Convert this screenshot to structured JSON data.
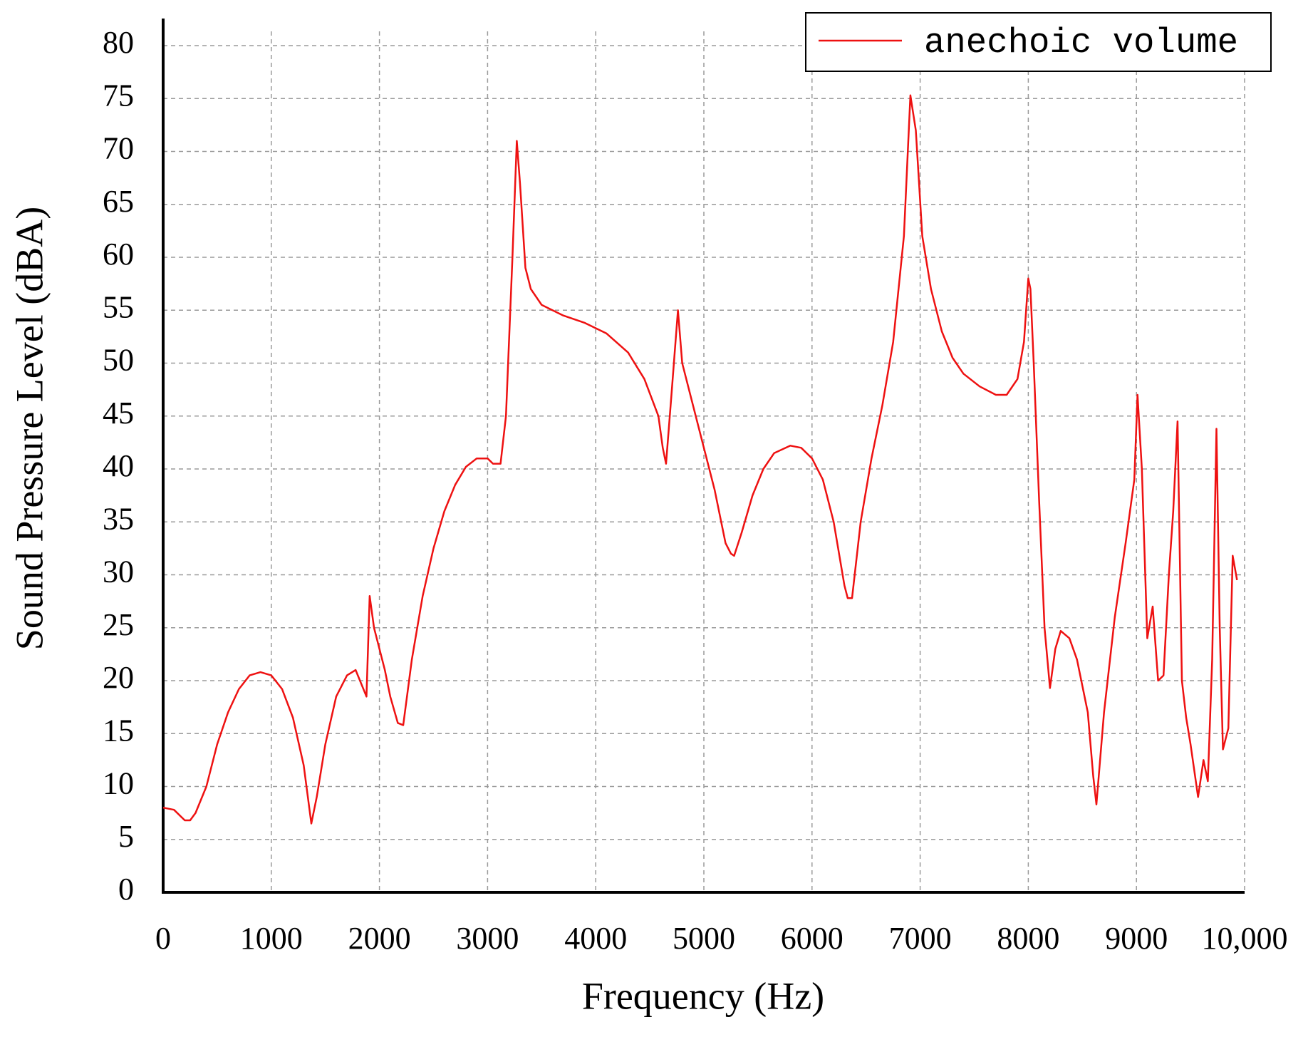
{
  "chart_data": {
    "type": "line",
    "xlabel": "Frequency (Hz)",
    "ylabel": "Sound Pressure Level (dBA)",
    "x": [
      0,
      100,
      200,
      250,
      300,
      400,
      500,
      600,
      700,
      800,
      900,
      1000,
      1100,
      1200,
      1300,
      1370,
      1420,
      1500,
      1600,
      1700,
      1780,
      1820,
      1880,
      1910,
      1950,
      2050,
      2100,
      2170,
      2220,
      2300,
      2400,
      2500,
      2600,
      2700,
      2800,
      2900,
      3000,
      3050,
      3120,
      3170,
      3230,
      3270,
      3300,
      3350,
      3400,
      3500,
      3700,
      3900,
      4100,
      4300,
      4450,
      4580,
      4620,
      4650,
      4700,
      4760,
      4800,
      4900,
      5000,
      5100,
      5200,
      5250,
      5280,
      5350,
      5450,
      5550,
      5650,
      5800,
      5900,
      6000,
      6100,
      6200,
      6300,
      6330,
      6370,
      6450,
      6550,
      6650,
      6750,
      6850,
      6910,
      6960,
      7020,
      7100,
      7200,
      7300,
      7400,
      7550,
      7700,
      7800,
      7900,
      7960,
      8000,
      8020,
      8050,
      8100,
      8150,
      8200,
      8250,
      8300,
      8380,
      8450,
      8550,
      8600,
      8630,
      8700,
      8800,
      8900,
      8980,
      9010,
      9050,
      9100,
      9150,
      9200,
      9250,
      9300,
      9340,
      9380,
      9420,
      9460,
      9500,
      9570,
      9620,
      9660,
      9700,
      9740,
      9770,
      9800,
      9850,
      9890,
      9930
    ],
    "series": [
      {
        "name": "anechoic volume",
        "color": "#ee1111",
        "values": [
          8,
          7.8,
          6.8,
          6.8,
          7.5,
          10,
          14,
          17,
          19.2,
          20.5,
          20.8,
          20.5,
          19.2,
          16.5,
          12,
          6.5,
          9,
          14,
          18.5,
          20.5,
          21,
          20,
          18.5,
          28,
          25,
          21,
          18.5,
          16,
          15.8,
          22,
          28,
          32.5,
          36,
          38.5,
          40.2,
          41,
          41,
          40.5,
          40.5,
          45,
          60,
          71,
          67,
          59,
          57,
          55.5,
          54.5,
          53.8,
          52.8,
          51,
          48.5,
          45,
          42,
          40.5,
          47,
          55,
          50,
          46,
          42,
          38,
          33,
          32,
          31.8,
          34,
          37.5,
          40,
          41.5,
          42.2,
          42,
          41,
          39,
          35,
          29,
          27.8,
          27.8,
          35,
          41,
          46,
          52,
          62,
          75.3,
          72,
          62,
          57,
          53,
          50.5,
          49,
          47.8,
          47,
          47,
          48.5,
          52,
          58,
          57,
          50,
          37,
          25,
          19.3,
          23,
          24.7,
          24,
          22,
          17,
          11,
          8.3,
          17,
          26,
          33,
          39,
          47,
          40,
          24,
          27,
          20,
          20.5,
          30,
          36,
          44.5,
          20,
          16.5,
          14,
          9,
          12.5,
          10.5,
          22,
          43.8,
          25,
          13.5,
          15.5,
          31.8,
          29.5
        ]
      }
    ],
    "xlim": [
      0,
      10000
    ],
    "xticks": [
      0,
      1000,
      2000,
      3000,
      4000,
      5000,
      6000,
      7000,
      8000,
      9000,
      {
        "value": 10000,
        "label": "10,000"
      }
    ],
    "ylim": [
      0,
      80
    ],
    "yticks": [
      0,
      5,
      10,
      15,
      20,
      25,
      30,
      35,
      40,
      45,
      50,
      55,
      60,
      65,
      70,
      75,
      80
    ],
    "grid": true,
    "legend": "upper right"
  }
}
